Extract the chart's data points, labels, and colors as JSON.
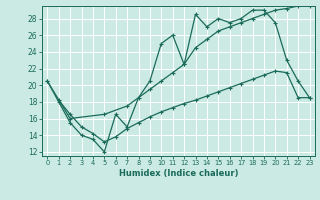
{
  "title": "",
  "xlabel": "Humidex (Indice chaleur)",
  "bg_color": "#cceae4",
  "grid_color": "#ffffff",
  "line_color": "#1a6b5a",
  "xlim": [
    -0.5,
    23.5
  ],
  "ylim": [
    11.5,
    29.5
  ],
  "xticks": [
    0,
    1,
    2,
    3,
    4,
    5,
    6,
    7,
    8,
    9,
    10,
    11,
    12,
    13,
    14,
    15,
    16,
    17,
    18,
    19,
    20,
    21,
    22,
    23
  ],
  "yticks": [
    12,
    14,
    16,
    18,
    20,
    22,
    24,
    26,
    28
  ],
  "line1_x": [
    0,
    1,
    2,
    3,
    4,
    5,
    6,
    7,
    8,
    9,
    10,
    11,
    12,
    13,
    14,
    15,
    16,
    17,
    18,
    19,
    20,
    21,
    22,
    23
  ],
  "line1_y": [
    20.5,
    18.0,
    15.5,
    14.0,
    13.5,
    12.0,
    16.5,
    15.0,
    18.5,
    20.5,
    25.0,
    26.0,
    22.5,
    28.5,
    27.0,
    28.0,
    27.5,
    28.0,
    29.0,
    29.0,
    27.5,
    23.0,
    20.5,
    18.5
  ],
  "line2_x": [
    0,
    2,
    5,
    7,
    9,
    10,
    11,
    12,
    13,
    14,
    15,
    16,
    17,
    18,
    19,
    20,
    21,
    22,
    23
  ],
  "line2_y": [
    20.5,
    16.0,
    16.5,
    17.5,
    19.5,
    20.5,
    21.5,
    22.5,
    24.5,
    25.5,
    26.5,
    27.0,
    27.5,
    28.0,
    28.5,
    29.0,
    29.2,
    29.5,
    29.5
  ],
  "line3_x": [
    1,
    2,
    3,
    4,
    5,
    6,
    7,
    8,
    9,
    10,
    11,
    12,
    13,
    14,
    15,
    16,
    17,
    18,
    19,
    20,
    21,
    22,
    23
  ],
  "line3_y": [
    18.2,
    16.5,
    15.0,
    14.2,
    13.2,
    13.8,
    14.8,
    15.5,
    16.2,
    16.8,
    17.3,
    17.8,
    18.2,
    18.7,
    19.2,
    19.7,
    20.2,
    20.7,
    21.2,
    21.7,
    21.5,
    18.5,
    18.5
  ]
}
